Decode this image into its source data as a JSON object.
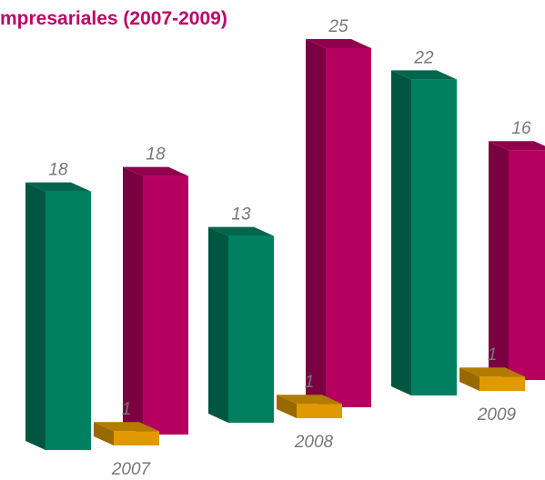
{
  "chart_data": {
    "type": "bar3d",
    "title": "mpresariales (2007-2009)",
    "categories": [
      "2007",
      "2008",
      "2009"
    ],
    "series": [
      {
        "color": "#008060",
        "values": [
          18,
          13,
          22
        ]
      },
      {
        "color": "#e09a00",
        "values": [
          1,
          1,
          1
        ]
      },
      {
        "color": "#b5005f",
        "values": [
          18,
          25,
          16
        ]
      }
    ]
  }
}
